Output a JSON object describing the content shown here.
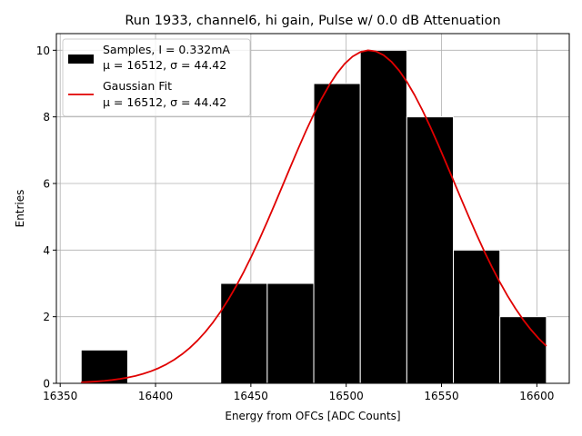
{
  "chart_data": {
    "type": "bar",
    "title": "Run 1933, channel6, hi gain, Pulse w/ 0.0 dB Attenuation",
    "xlabel": "Energy from OFCs [ADC Counts]",
    "ylabel": "Entries",
    "xlim": [
      16348,
      16617
    ],
    "ylim": [
      0,
      10.5
    ],
    "xticks": [
      16350,
      16400,
      16450,
      16500,
      16550,
      16600
    ],
    "yticks": [
      0,
      2,
      4,
      6,
      8,
      10
    ],
    "grid": true,
    "legend_position": "top-left",
    "histogram": {
      "name": "Samples, I = 0.332mA",
      "stats": "μ = 16512, σ = 44.42",
      "color": "#000000",
      "edgecolor": "#ffffff",
      "bin_edges": [
        16361,
        16385.4,
        16409.8,
        16434.2,
        16458.6,
        16483,
        16507.4,
        16531.8,
        16556.2,
        16580.6,
        16605
      ],
      "counts": [
        1,
        0,
        0,
        3,
        3,
        9,
        10,
        8,
        4,
        2
      ]
    },
    "fit": {
      "name": "Gaussian Fit",
      "stats": "μ = 16512, σ = 44.42",
      "color": "#e00000",
      "mu": 16512,
      "sigma": 44.42,
      "amplitude": 10,
      "x_range": [
        16361,
        16605
      ]
    }
  }
}
